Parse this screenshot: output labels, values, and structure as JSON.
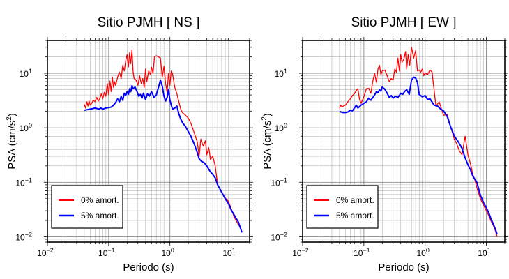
{
  "chart_data": [
    {
      "type": "line",
      "title": "Sitio PJMH [ NS ]",
      "xlabel": "Periodo (s)",
      "ylabel": "PSA (cm/s²)",
      "xscale": "log",
      "yscale": "log",
      "xlim": [
        0.01,
        20
      ],
      "ylim": [
        0.008,
        40
      ],
      "grid": true,
      "legend_position": "bottom-left",
      "xticks": [
        {
          "value": 0.01,
          "base": "10",
          "exp": "−2"
        },
        {
          "value": 0.1,
          "base": "10",
          "exp": "−1"
        },
        {
          "value": 1,
          "base": "10",
          "exp": "0"
        },
        {
          "value": 10,
          "base": "10",
          "exp": "1"
        }
      ],
      "yticks": [
        {
          "value": 0.01,
          "base": "10",
          "exp": "−2"
        },
        {
          "value": 0.1,
          "base": "10",
          "exp": "−1"
        },
        {
          "value": 1,
          "base": "10",
          "exp": "0"
        },
        {
          "value": 10,
          "base": "10",
          "exp": "1"
        }
      ],
      "series": [
        {
          "name": "0% amort.",
          "color": "#ff0000",
          "x": [
            0.04,
            0.042,
            0.044,
            0.046,
            0.048,
            0.05,
            0.053,
            0.056,
            0.06,
            0.064,
            0.068,
            0.072,
            0.076,
            0.08,
            0.085,
            0.09,
            0.095,
            0.1,
            0.105,
            0.11,
            0.115,
            0.12,
            0.125,
            0.13,
            0.14,
            0.15,
            0.16,
            0.17,
            0.18,
            0.19,
            0.2,
            0.21,
            0.22,
            0.23,
            0.24,
            0.25,
            0.26,
            0.28,
            0.3,
            0.32,
            0.34,
            0.36,
            0.38,
            0.4,
            0.42,
            0.45,
            0.48,
            0.5,
            0.53,
            0.56,
            0.6,
            0.65,
            0.7,
            0.75,
            0.8,
            0.85,
            0.9,
            0.95,
            1.0,
            1.05,
            1.1,
            1.2,
            1.3,
            1.4,
            1.5,
            1.6,
            1.8,
            2.0,
            2.2,
            2.5,
            2.8,
            3.0,
            3.2,
            3.5,
            3.8,
            4.0,
            4.3,
            4.6,
            5.0,
            5.5,
            6.0,
            7.0,
            8.0,
            9.0,
            10.0,
            11.0,
            12.0,
            13.0,
            14.0,
            15.0
          ],
          "y": [
            2.7,
            2.3,
            3.0,
            2.5,
            3.1,
            2.6,
            2.8,
            3.2,
            3.0,
            3.6,
            3.1,
            3.5,
            4.2,
            3.4,
            4.5,
            3.8,
            6.5,
            4.0,
            7.2,
            4.6,
            8.5,
            5.5,
            7.0,
            6.0,
            8.5,
            10.5,
            8.0,
            14.0,
            11.0,
            17.0,
            22.0,
            13.0,
            24.0,
            15.0,
            27.0,
            11.0,
            8.0,
            7.5,
            6.0,
            9.0,
            6.5,
            8.0,
            5.5,
            12.0,
            7.0,
            11.0,
            9.5,
            13.0,
            10.0,
            20.0,
            21.0,
            20.0,
            19.0,
            8.5,
            13.5,
            6.5,
            4.5,
            10.0,
            6.0,
            11.0,
            10.0,
            5.5,
            4.2,
            3.0,
            2.2,
            1.9,
            1.7,
            1.5,
            1.2,
            0.8,
            0.55,
            0.3,
            0.62,
            0.46,
            0.58,
            0.32,
            0.43,
            0.26,
            0.3,
            0.2,
            0.09,
            0.065,
            0.052,
            0.045,
            0.033,
            0.024,
            0.02,
            0.017,
            0.015,
            0.012
          ]
        },
        {
          "name": "5% amort.",
          "color": "#0000ff",
          "x": [
            0.04,
            0.045,
            0.05,
            0.055,
            0.06,
            0.065,
            0.07,
            0.075,
            0.08,
            0.09,
            0.1,
            0.11,
            0.12,
            0.13,
            0.14,
            0.15,
            0.16,
            0.17,
            0.18,
            0.19,
            0.2,
            0.21,
            0.22,
            0.23,
            0.24,
            0.25,
            0.27,
            0.29,
            0.31,
            0.33,
            0.35,
            0.37,
            0.4,
            0.43,
            0.46,
            0.5,
            0.55,
            0.6,
            0.65,
            0.7,
            0.75,
            0.8,
            0.85,
            0.9,
            0.95,
            1.0,
            1.1,
            1.2,
            1.3,
            1.4,
            1.5,
            1.6,
            1.8,
            2.0,
            2.2,
            2.5,
            2.8,
            3.0,
            3.3,
            3.6,
            4.0,
            4.5,
            5.0,
            5.5,
            6.0,
            7.0,
            8.0,
            9.0,
            10.0,
            11.0,
            12.0,
            13.0,
            14.0,
            15.0
          ],
          "y": [
            2.1,
            2.15,
            2.2,
            2.25,
            2.3,
            2.25,
            2.2,
            2.3,
            2.2,
            2.3,
            2.35,
            2.4,
            2.6,
            2.9,
            3.4,
            3.0,
            3.8,
            3.2,
            4.3,
            3.9,
            4.6,
            4.1,
            5.2,
            4.6,
            5.9,
            5.2,
            5.6,
            4.6,
            3.8,
            4.1,
            3.5,
            4.3,
            3.3,
            4.2,
            3.8,
            4.6,
            3.6,
            4.0,
            5.5,
            7.5,
            5.8,
            3.8,
            3.1,
            3.6,
            5.0,
            3.2,
            2.2,
            2.3,
            2.5,
            1.8,
            1.45,
            1.25,
            1.05,
            0.85,
            0.7,
            0.5,
            0.35,
            0.27,
            0.24,
            0.23,
            0.2,
            0.16,
            0.14,
            0.12,
            0.09,
            0.066,
            0.05,
            0.041,
            0.031,
            0.026,
            0.022,
            0.019,
            0.015,
            0.012
          ]
        }
      ]
    },
    {
      "type": "line",
      "title": "Sitio PJMH [ EW ]",
      "xlabel": "Periodo (s)",
      "ylabel": "PSA (cm/s²)",
      "xscale": "log",
      "yscale": "log",
      "xlim": [
        0.01,
        20
      ],
      "ylim": [
        0.008,
        40
      ],
      "grid": true,
      "legend_position": "bottom-left",
      "xticks": [
        {
          "value": 0.01,
          "base": "10",
          "exp": "−2"
        },
        {
          "value": 0.1,
          "base": "10",
          "exp": "−1"
        },
        {
          "value": 1,
          "base": "10",
          "exp": "0"
        },
        {
          "value": 10,
          "base": "10",
          "exp": "1"
        }
      ],
      "yticks": [
        {
          "value": 0.01,
          "base": "10",
          "exp": "−2"
        },
        {
          "value": 0.1,
          "base": "10",
          "exp": "−1"
        },
        {
          "value": 1,
          "base": "10",
          "exp": "0"
        },
        {
          "value": 10,
          "base": "10",
          "exp": "1"
        }
      ],
      "series": [
        {
          "name": "0% amort.",
          "color": "#ff0000",
          "x": [
            0.04,
            0.042,
            0.044,
            0.046,
            0.05,
            0.055,
            0.06,
            0.065,
            0.07,
            0.075,
            0.08,
            0.085,
            0.09,
            0.1,
            0.11,
            0.12,
            0.13,
            0.14,
            0.15,
            0.16,
            0.17,
            0.18,
            0.19,
            0.2,
            0.22,
            0.24,
            0.26,
            0.28,
            0.3,
            0.32,
            0.34,
            0.36,
            0.38,
            0.4,
            0.42,
            0.45,
            0.48,
            0.5,
            0.53,
            0.56,
            0.6,
            0.65,
            0.7,
            0.75,
            0.8,
            0.85,
            0.9,
            0.95,
            1.0,
            1.1,
            1.2,
            1.3,
            1.5,
            1.7,
            2.0,
            2.3,
            2.6,
            3.0,
            3.3,
            3.6,
            4.0,
            4.5,
            5.0,
            5.5,
            6.0,
            6.5,
            7.0,
            8.0,
            9.0,
            10.0,
            11.0,
            12.0,
            13.0,
            14.0,
            15.0
          ],
          "y": [
            2.3,
            2.6,
            2.4,
            2.5,
            2.6,
            3.0,
            3.4,
            3.9,
            4.2,
            4.8,
            5.2,
            3.3,
            2.8,
            3.7,
            5.2,
            5.3,
            4.3,
            7.2,
            10.0,
            6.8,
            12.0,
            14.0,
            9.5,
            11.0,
            11.5,
            9.0,
            7.0,
            8.0,
            7.5,
            12.0,
            10.5,
            19.0,
            11.0,
            22.0,
            16.0,
            18.0,
            25.0,
            12.0,
            22.0,
            14.0,
            30.0,
            19.0,
            26.0,
            11.0,
            11.5,
            10.5,
            12.0,
            9.0,
            10.0,
            9.5,
            11.5,
            10.5,
            2.5,
            3.0,
            1.7,
            1.75,
            1.05,
            0.62,
            0.5,
            0.38,
            0.32,
            0.7,
            0.32,
            0.22,
            0.14,
            0.11,
            0.08,
            0.05,
            0.038,
            0.03,
            0.024,
            0.019,
            0.016,
            0.013,
            0.01
          ]
        },
        {
          "name": "5% amort.",
          "color": "#0000ff",
          "x": [
            0.04,
            0.045,
            0.05,
            0.055,
            0.06,
            0.065,
            0.07,
            0.075,
            0.08,
            0.09,
            0.1,
            0.11,
            0.12,
            0.13,
            0.14,
            0.15,
            0.16,
            0.17,
            0.18,
            0.19,
            0.2,
            0.22,
            0.24,
            0.26,
            0.28,
            0.3,
            0.33,
            0.36,
            0.4,
            0.43,
            0.46,
            0.5,
            0.55,
            0.6,
            0.65,
            0.7,
            0.75,
            0.8,
            0.9,
            1.0,
            1.1,
            1.2,
            1.4,
            1.6,
            1.8,
            2.0,
            2.3,
            2.6,
            3.0,
            3.5,
            4.0,
            4.5,
            5.0,
            5.5,
            6.0,
            7.0,
            8.0,
            9.0,
            10.0,
            11.0,
            12.0,
            13.0,
            14.0,
            15.0
          ],
          "y": [
            2.0,
            1.9,
            1.9,
            1.95,
            2.1,
            2.05,
            2.3,
            2.6,
            2.3,
            2.6,
            2.8,
            3.0,
            3.5,
            3.2,
            3.6,
            4.0,
            4.6,
            4.4,
            5.0,
            4.7,
            5.6,
            5.1,
            4.3,
            3.6,
            3.9,
            3.5,
            3.8,
            3.6,
            4.3,
            4.1,
            4.6,
            5.0,
            4.1,
            7.5,
            8.5,
            8.2,
            6.8,
            4.1,
            3.7,
            3.9,
            3.3,
            3.4,
            2.6,
            2.5,
            2.2,
            2.05,
            1.6,
            1.05,
            0.7,
            0.55,
            0.42,
            0.28,
            0.21,
            0.17,
            0.13,
            0.1,
            0.058,
            0.042,
            0.034,
            0.027,
            0.021,
            0.017,
            0.014,
            0.011
          ]
        }
      ]
    }
  ]
}
